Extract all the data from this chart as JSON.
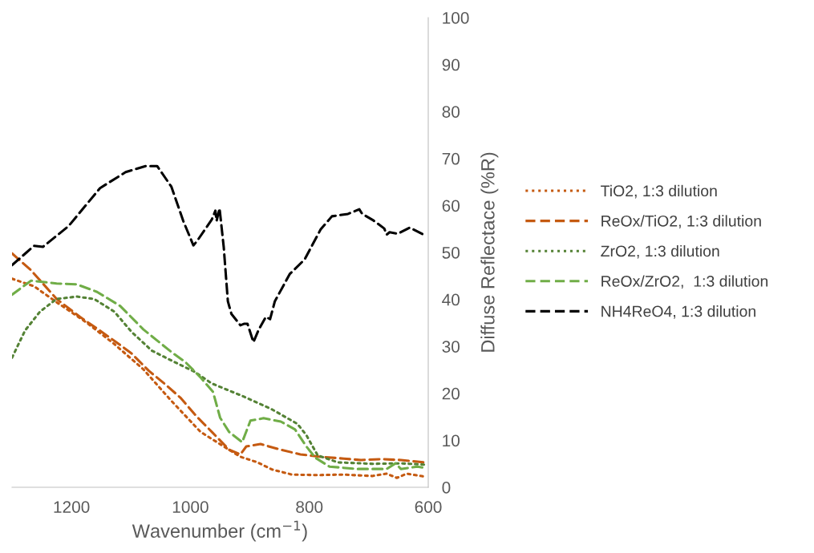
{
  "chart_data": {
    "type": "line",
    "xlabel": "Wavenumber (cm$^{−1}$)",
    "ylabel": "Diffuse Reflectace (%R)",
    "xlim": [
      1300,
      600
    ],
    "xticks": [
      1200,
      1000,
      800,
      600
    ],
    "ylim": [
      0,
      100
    ],
    "yticks": [
      0,
      10,
      20,
      30,
      40,
      50,
      60,
      70,
      80,
      90,
      100
    ],
    "grid": false,
    "legend": "right",
    "marker": "none",
    "series": [
      {
        "name": "TiO2, 1:3 dilution",
        "color": "#c55a11",
        "line_style": "dotted",
        "x": [
          1300,
          1263,
          1225,
          1176,
          1128,
          1079,
          1032,
          983,
          944,
          916,
          887,
          863,
          829,
          790,
          742,
          694,
          670,
          653,
          636,
          603
        ],
        "values": [
          44.4,
          42.8,
          39.4,
          35.2,
          30.5,
          25.1,
          18.4,
          11.8,
          8.7,
          6.5,
          5.3,
          3.8,
          2.7,
          2.6,
          2.7,
          2.4,
          2.9,
          2.0,
          2.9,
          2.2
        ]
      },
      {
        "name": "ReOx/TiO2, 1:3 dilution",
        "color": "#c55a11",
        "line_style": "dashed",
        "x": [
          1300,
          1268,
          1225,
          1186,
          1155,
          1128,
          1099,
          1070,
          1044,
          1017,
          989,
          964,
          935,
          916,
          906,
          882,
          848,
          815,
          781,
          742,
          713,
          680,
          646,
          607
        ],
        "values": [
          49.8,
          46.2,
          40.1,
          36.3,
          33.6,
          31.2,
          28.5,
          24.8,
          22.1,
          19.1,
          15.0,
          11.8,
          8.0,
          7.0,
          8.7,
          9.2,
          8.0,
          7.0,
          6.5,
          6.1,
          5.8,
          6.0,
          5.8,
          5.3
        ]
      },
      {
        "name": "ZrO2, 1:3 dilution",
        "color": "#548235",
        "line_style": "dotted",
        "x": [
          1300,
          1278,
          1253,
          1225,
          1191,
          1162,
          1128,
          1099,
          1065,
          1032,
          993,
          964,
          910,
          863,
          820,
          805,
          786,
          752,
          694,
          646,
          603
        ],
        "values": [
          27.6,
          33.4,
          37.4,
          40.1,
          40.6,
          40.1,
          37.4,
          33.1,
          29.1,
          27.0,
          24.6,
          22.1,
          19.3,
          16.6,
          13.5,
          11.1,
          6.8,
          5.3,
          5.0,
          5.1,
          4.8
        ]
      },
      {
        "name": "ReOx/ZrO2,  1:3 dilution",
        "color": "#70ad47",
        "line_style": "dashed",
        "x": [
          1300,
          1268,
          1225,
          1191,
          1157,
          1118,
          1079,
          1032,
          1008,
          983,
          962,
          950,
          935,
          913,
          899,
          877,
          848,
          824,
          805,
          790,
          766,
          719,
          670,
          655,
          646,
          618,
          603
        ],
        "values": [
          41.0,
          44.0,
          43.4,
          43.2,
          41.6,
          38.6,
          33.6,
          28.8,
          26.6,
          23.4,
          20.3,
          14.8,
          11.8,
          9.6,
          14.2,
          14.7,
          14.0,
          12.3,
          8.7,
          6.3,
          4.4,
          3.9,
          3.9,
          5.1,
          3.9,
          4.4,
          4.1
        ]
      },
      {
        "name": "NH4ReO4, 1:3 dilution",
        "color": "#000000",
        "line_style": "dashed",
        "x": [
          1300,
          1263,
          1248,
          1205,
          1152,
          1109,
          1075,
          1056,
          1032,
          1012,
          995,
          989,
          964,
          958,
          956,
          951,
          944,
          937,
          931,
          916,
          910,
          904,
          894,
          885,
          873,
          866,
          858,
          833,
          808,
          781,
          762,
          735,
          716,
          711,
          692,
          674,
          670,
          665,
          651,
          631,
          605
        ],
        "values": [
          47.3,
          51.4,
          51.2,
          55.6,
          63.7,
          67.1,
          68.4,
          68.4,
          64.0,
          56.7,
          51.5,
          52.4,
          57.0,
          58.9,
          56.7,
          59.4,
          51.2,
          39.6,
          36.9,
          34.5,
          34.8,
          34.8,
          30.9,
          33.6,
          36.3,
          35.8,
          39.6,
          45.4,
          48.5,
          54.9,
          57.7,
          58.2,
          59.2,
          58.2,
          56.8,
          55.1,
          53.8,
          54.3,
          54.0,
          55.3,
          53.6
        ]
      }
    ]
  }
}
